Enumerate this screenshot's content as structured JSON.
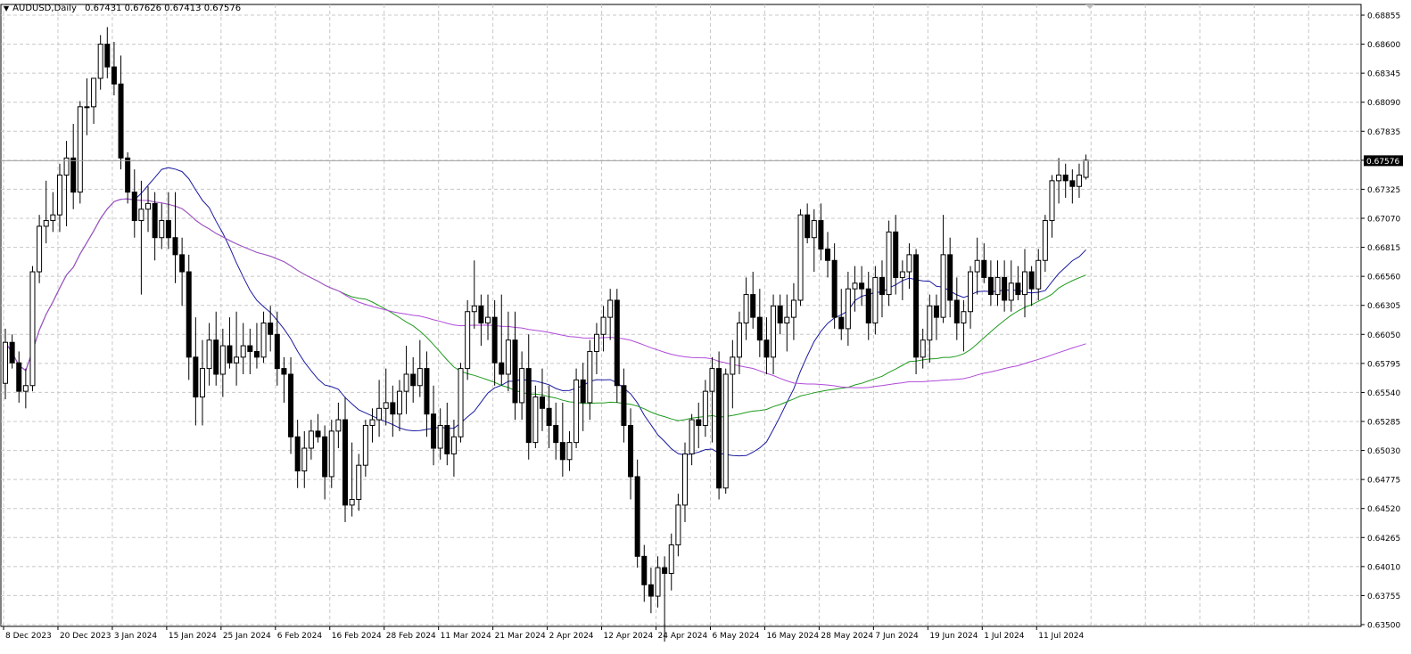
{
  "header": {
    "symbol": "AUDUSD,Daily",
    "open": "0.67431",
    "high": "0.67626",
    "low": "0.67413",
    "close": "0.67576"
  },
  "price_label": "0.67576",
  "colors": {
    "grid": "#c8c8c8",
    "candle": "#000000",
    "ma_fast": "#1a1aa0",
    "ma_mid": "#1e9a1e",
    "ma_slow": "#b04ad8",
    "price_line": "#a0a0a0",
    "price_label_bg": "#000000"
  },
  "chart_data": {
    "type": "candlestick",
    "y_axis_ticks": [
      "0.68855",
      "0.68600",
      "0.68345",
      "0.68090",
      "0.67835",
      "0.67580",
      "0.67325",
      "0.67070",
      "0.66815",
      "0.66560",
      "0.66305",
      "0.66050",
      "0.65795",
      "0.65540",
      "0.65285",
      "0.65030",
      "0.64775",
      "0.64520",
      "0.64265",
      "0.64010",
      "0.63755",
      "0.63500"
    ],
    "ylim": [
      0.635,
      0.68855
    ],
    "x_axis_ticks": [
      "8 Dec 2023",
      "20 Dec 2023",
      "3 Jan 2024",
      "15 Jan 2024",
      "25 Jan 2024",
      "6 Feb 2024",
      "16 Feb 2024",
      "28 Feb 2024",
      "11 Mar 2024",
      "21 Mar 2024",
      "2 Apr 2024",
      "12 Apr 2024",
      "24 Apr 2024",
      "6 May 2024",
      "16 May 2024",
      "28 May 2024",
      "7 Jun 2024",
      "19 Jun 2024",
      "1 Jul 2024",
      "11 Jul 2024"
    ],
    "last_close": 0.67576,
    "candles": [
      [
        0.6562,
        0.661,
        0.6548,
        0.6598
      ],
      [
        0.6598,
        0.6605,
        0.6575,
        0.658
      ],
      [
        0.658,
        0.659,
        0.6545,
        0.6555
      ],
      [
        0.6555,
        0.6575,
        0.654,
        0.656
      ],
      [
        0.656,
        0.6665,
        0.6555,
        0.666
      ],
      [
        0.666,
        0.671,
        0.665,
        0.67
      ],
      [
        0.67,
        0.674,
        0.6685,
        0.6705
      ],
      [
        0.6705,
        0.673,
        0.6695,
        0.671
      ],
      [
        0.671,
        0.6755,
        0.6695,
        0.6745
      ],
      [
        0.6745,
        0.6775,
        0.67,
        0.676
      ],
      [
        0.676,
        0.679,
        0.6715,
        0.673
      ],
      [
        0.673,
        0.681,
        0.672,
        0.6805
      ],
      [
        0.6805,
        0.683,
        0.678,
        0.6805
      ],
      [
        0.6805,
        0.683,
        0.679,
        0.683
      ],
      [
        0.683,
        0.6868,
        0.682,
        0.686
      ],
      [
        0.686,
        0.6875,
        0.683,
        0.684
      ],
      [
        0.684,
        0.6862,
        0.6815,
        0.6825
      ],
      [
        0.6825,
        0.685,
        0.675,
        0.676
      ],
      [
        0.676,
        0.6765,
        0.672,
        0.673
      ],
      [
        0.673,
        0.675,
        0.669,
        0.6705
      ],
      [
        0.6705,
        0.674,
        0.664,
        0.6715
      ],
      [
        0.6715,
        0.6735,
        0.6695,
        0.672
      ],
      [
        0.672,
        0.673,
        0.667,
        0.669
      ],
      [
        0.669,
        0.672,
        0.668,
        0.6705
      ],
      [
        0.6705,
        0.673,
        0.668,
        0.669
      ],
      [
        0.669,
        0.673,
        0.665,
        0.6675
      ],
      [
        0.6675,
        0.669,
        0.663,
        0.666
      ],
      [
        0.666,
        0.6675,
        0.6565,
        0.6585
      ],
      [
        0.6585,
        0.662,
        0.6525,
        0.655
      ],
      [
        0.655,
        0.66,
        0.6525,
        0.6575
      ],
      [
        0.6575,
        0.6615,
        0.656,
        0.66
      ],
      [
        0.66,
        0.6625,
        0.656,
        0.657
      ],
      [
        0.657,
        0.661,
        0.655,
        0.6595
      ],
      [
        0.6595,
        0.662,
        0.6575,
        0.658
      ],
      [
        0.658,
        0.6625,
        0.656,
        0.6585
      ],
      [
        0.6585,
        0.6615,
        0.657,
        0.6595
      ],
      [
        0.6595,
        0.661,
        0.657,
        0.659
      ],
      [
        0.659,
        0.6615,
        0.6575,
        0.6585
      ],
      [
        0.6585,
        0.6625,
        0.658,
        0.6615
      ],
      [
        0.6615,
        0.663,
        0.659,
        0.6605
      ],
      [
        0.6605,
        0.6625,
        0.656,
        0.6575
      ],
      [
        0.6575,
        0.6585,
        0.6545,
        0.657
      ],
      [
        0.657,
        0.6585,
        0.65,
        0.6515
      ],
      [
        0.6515,
        0.653,
        0.647,
        0.6485
      ],
      [
        0.6485,
        0.652,
        0.647,
        0.6505
      ],
      [
        0.6505,
        0.653,
        0.6495,
        0.652
      ],
      [
        0.652,
        0.6535,
        0.651,
        0.6515
      ],
      [
        0.6515,
        0.6525,
        0.646,
        0.648
      ],
      [
        0.648,
        0.653,
        0.647,
        0.652
      ],
      [
        0.652,
        0.6545,
        0.6505,
        0.653
      ],
      [
        0.653,
        0.655,
        0.644,
        0.6455
      ],
      [
        0.6455,
        0.651,
        0.6445,
        0.646
      ],
      [
        0.646,
        0.65,
        0.645,
        0.649
      ],
      [
        0.649,
        0.653,
        0.648,
        0.6525
      ],
      [
        0.6525,
        0.654,
        0.651,
        0.653
      ],
      [
        0.653,
        0.6565,
        0.6515,
        0.654
      ],
      [
        0.654,
        0.6575,
        0.6525,
        0.6545
      ],
      [
        0.6545,
        0.656,
        0.6515,
        0.6535
      ],
      [
        0.6535,
        0.6565,
        0.652,
        0.6555
      ],
      [
        0.6555,
        0.6595,
        0.6535,
        0.657
      ],
      [
        0.657,
        0.6585,
        0.6545,
        0.656
      ],
      [
        0.656,
        0.66,
        0.655,
        0.6575
      ],
      [
        0.6575,
        0.659,
        0.6515,
        0.6535
      ],
      [
        0.6535,
        0.656,
        0.649,
        0.6505
      ],
      [
        0.6505,
        0.654,
        0.6495,
        0.6525
      ],
      [
        0.6525,
        0.6545,
        0.649,
        0.65
      ],
      [
        0.65,
        0.653,
        0.648,
        0.6515
      ],
      [
        0.6515,
        0.658,
        0.651,
        0.6575
      ],
      [
        0.6575,
        0.6635,
        0.6565,
        0.6625
      ],
      [
        0.6625,
        0.667,
        0.661,
        0.663
      ],
      [
        0.663,
        0.664,
        0.6595,
        0.6615
      ],
      [
        0.6615,
        0.664,
        0.66,
        0.662
      ],
      [
        0.662,
        0.6635,
        0.656,
        0.658
      ],
      [
        0.658,
        0.664,
        0.656,
        0.657
      ],
      [
        0.657,
        0.6625,
        0.6555,
        0.66
      ],
      [
        0.66,
        0.6625,
        0.653,
        0.6545
      ],
      [
        0.6545,
        0.659,
        0.653,
        0.6575
      ],
      [
        0.6575,
        0.6605,
        0.6495,
        0.651
      ],
      [
        0.651,
        0.656,
        0.6505,
        0.655
      ],
      [
        0.655,
        0.6575,
        0.652,
        0.654
      ],
      [
        0.654,
        0.656,
        0.6505,
        0.6525
      ],
      [
        0.6525,
        0.6545,
        0.6495,
        0.651
      ],
      [
        0.651,
        0.6545,
        0.648,
        0.6495
      ],
      [
        0.6495,
        0.652,
        0.6485,
        0.651
      ],
      [
        0.651,
        0.6575,
        0.6505,
        0.6565
      ],
      [
        0.6565,
        0.658,
        0.652,
        0.6545
      ],
      [
        0.6545,
        0.66,
        0.653,
        0.659
      ],
      [
        0.659,
        0.6615,
        0.657,
        0.6605
      ],
      [
        0.6605,
        0.663,
        0.659,
        0.662
      ],
      [
        0.662,
        0.6645,
        0.66,
        0.6635
      ],
      [
        0.6635,
        0.6645,
        0.6545,
        0.656
      ],
      [
        0.656,
        0.6575,
        0.651,
        0.6525
      ],
      [
        0.6525,
        0.654,
        0.646,
        0.648
      ],
      [
        0.648,
        0.6495,
        0.64,
        0.641
      ],
      [
        0.641,
        0.642,
        0.637,
        0.6385
      ],
      [
        0.6385,
        0.64,
        0.636,
        0.6375
      ],
      [
        0.6375,
        0.641,
        0.6365,
        0.64
      ],
      [
        0.64,
        0.641,
        0.6335,
        0.6395
      ],
      [
        0.6395,
        0.643,
        0.638,
        0.642
      ],
      [
        0.642,
        0.6465,
        0.641,
        0.6455
      ],
      [
        0.6455,
        0.651,
        0.644,
        0.65
      ],
      [
        0.65,
        0.6535,
        0.649,
        0.653
      ],
      [
        0.653,
        0.6545,
        0.6505,
        0.6525
      ],
      [
        0.6525,
        0.6565,
        0.6515,
        0.6555
      ],
      [
        0.6555,
        0.6585,
        0.651,
        0.6575
      ],
      [
        0.6575,
        0.659,
        0.646,
        0.647
      ],
      [
        0.647,
        0.6575,
        0.6465,
        0.657
      ],
      [
        0.657,
        0.66,
        0.654,
        0.6585
      ],
      [
        0.6585,
        0.6625,
        0.657,
        0.6615
      ],
      [
        0.6615,
        0.6655,
        0.66,
        0.664
      ],
      [
        0.664,
        0.666,
        0.661,
        0.662
      ],
      [
        0.662,
        0.6645,
        0.6585,
        0.66
      ],
      [
        0.66,
        0.662,
        0.657,
        0.6585
      ],
      [
        0.6585,
        0.664,
        0.657,
        0.663
      ],
      [
        0.663,
        0.664,
        0.6605,
        0.6615
      ],
      [
        0.6615,
        0.664,
        0.659,
        0.662
      ],
      [
        0.662,
        0.665,
        0.66,
        0.6635
      ],
      [
        0.6635,
        0.6715,
        0.663,
        0.671
      ],
      [
        0.671,
        0.672,
        0.6685,
        0.669
      ],
      [
        0.669,
        0.6715,
        0.666,
        0.6705
      ],
      [
        0.6705,
        0.672,
        0.667,
        0.668
      ],
      [
        0.668,
        0.6695,
        0.6655,
        0.667
      ],
      [
        0.667,
        0.6685,
        0.661,
        0.662
      ],
      [
        0.662,
        0.6645,
        0.66,
        0.661
      ],
      [
        0.661,
        0.666,
        0.6595,
        0.6645
      ],
      [
        0.6645,
        0.6665,
        0.6625,
        0.665
      ],
      [
        0.665,
        0.6665,
        0.663,
        0.6645
      ],
      [
        0.6645,
        0.666,
        0.66,
        0.6615
      ],
      [
        0.6615,
        0.6665,
        0.6605,
        0.6655
      ],
      [
        0.6655,
        0.667,
        0.662,
        0.664
      ],
      [
        0.664,
        0.6705,
        0.663,
        0.6695
      ],
      [
        0.6695,
        0.671,
        0.664,
        0.6655
      ],
      [
        0.6655,
        0.667,
        0.6635,
        0.666
      ],
      [
        0.666,
        0.6685,
        0.6645,
        0.6675
      ],
      [
        0.6675,
        0.668,
        0.657,
        0.6585
      ],
      [
        0.6585,
        0.661,
        0.6575,
        0.66
      ],
      [
        0.66,
        0.664,
        0.658,
        0.663
      ],
      [
        0.663,
        0.664,
        0.66,
        0.662
      ],
      [
        0.662,
        0.671,
        0.6615,
        0.6675
      ],
      [
        0.6675,
        0.669,
        0.662,
        0.6635
      ],
      [
        0.6635,
        0.6655,
        0.66,
        0.6615
      ],
      [
        0.6615,
        0.6635,
        0.659,
        0.6625
      ],
      [
        0.6625,
        0.6665,
        0.661,
        0.666
      ],
      [
        0.666,
        0.669,
        0.664,
        0.667
      ],
      [
        0.667,
        0.6685,
        0.665,
        0.6655
      ],
      [
        0.6655,
        0.667,
        0.663,
        0.664
      ],
      [
        0.664,
        0.667,
        0.663,
        0.6655
      ],
      [
        0.6655,
        0.667,
        0.6625,
        0.6635
      ],
      [
        0.6635,
        0.667,
        0.6625,
        0.665
      ],
      [
        0.665,
        0.6665,
        0.6635,
        0.664
      ],
      [
        0.664,
        0.668,
        0.662,
        0.666
      ],
      [
        0.666,
        0.6665,
        0.663,
        0.6645
      ],
      [
        0.6645,
        0.668,
        0.6635,
        0.667
      ],
      [
        0.667,
        0.671,
        0.666,
        0.6705
      ],
      [
        0.6705,
        0.6745,
        0.669,
        0.674
      ],
      [
        0.674,
        0.676,
        0.672,
        0.6745
      ],
      [
        0.6745,
        0.6755,
        0.6725,
        0.674
      ],
      [
        0.674,
        0.675,
        0.672,
        0.6735
      ],
      [
        0.6735,
        0.6755,
        0.6725,
        0.6745
      ],
      [
        0.6743,
        0.6763,
        0.6741,
        0.6758
      ]
    ]
  }
}
